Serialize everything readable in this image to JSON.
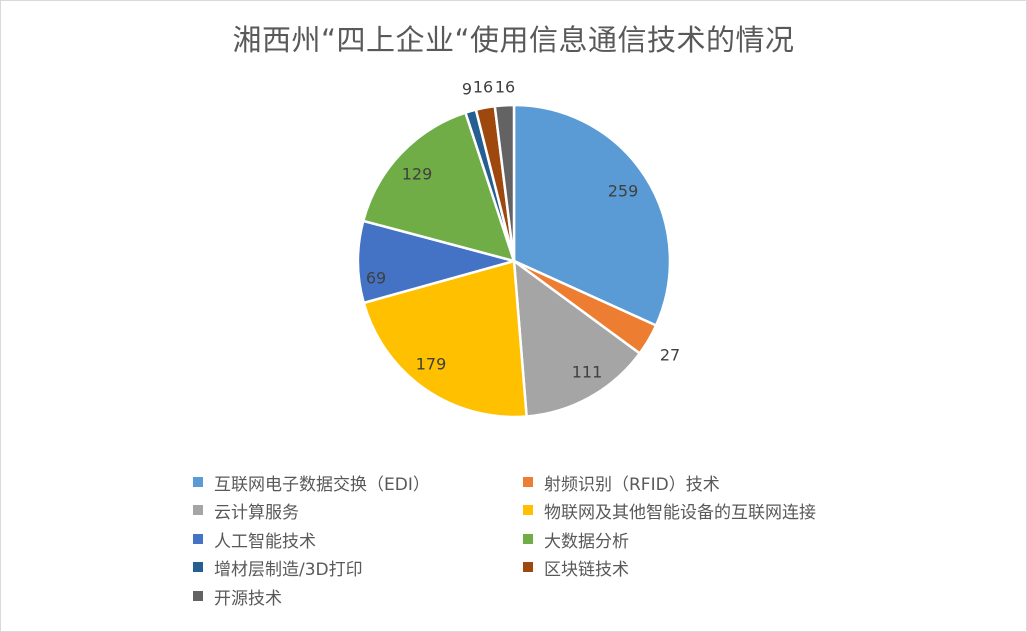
{
  "chart_data": {
    "type": "pie",
    "title": "湘西州“四上企业“使用信息通信技术的情况",
    "categories": [
      "互联网电子数据交换（EDI）",
      "射频识别（RFID）技术",
      "云计算服务",
      "物联网及其他智能设备的互联网连接",
      "人工智能技术",
      "大数据分析",
      "增材层制造/3D打印",
      "区块链技术",
      "开源技术"
    ],
    "values": [
      259,
      27,
      111,
      179,
      69,
      129,
      9,
      16,
      16
    ],
    "data_labels": [
      "259",
      "27",
      "111",
      "179",
      "69",
      "129",
      "9",
      "16",
      "16"
    ],
    "colors": [
      "#5b9bd5",
      "#ed7d31",
      "#a5a5a5",
      "#ffc000",
      "#4472c4",
      "#70ad47",
      "#255e91",
      "#9e480e",
      "#636363"
    ],
    "legend_position": "bottom"
  }
}
